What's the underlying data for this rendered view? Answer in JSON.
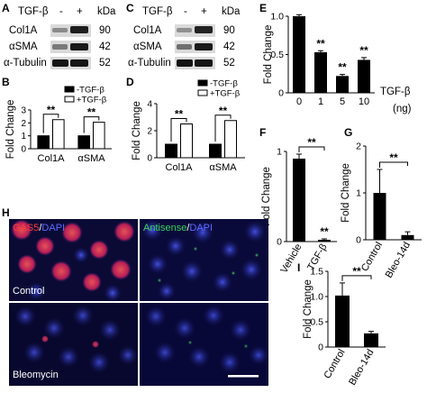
{
  "panel_letters": {
    "A": "A",
    "B": "B",
    "C": "C",
    "D": "D",
    "E": "E",
    "F": "F",
    "G": "G",
    "H": "H",
    "I": "I"
  },
  "blot_A": {
    "treatment_label": "TGF-β",
    "minus": "-",
    "plus": "+",
    "unit": "kDa",
    "rows": [
      {
        "name": "Col1A",
        "kda": "90"
      },
      {
        "name": "αSMA",
        "kda": "42"
      },
      {
        "name": "α-Tubulin",
        "kda": "52"
      }
    ]
  },
  "blot_C": {
    "treatment_label": "TGF-β",
    "minus": "-",
    "plus": "+",
    "unit": "kDa",
    "rows": [
      {
        "name": "Col1A",
        "kda": "90"
      },
      {
        "name": "αSMA",
        "kda": "42"
      },
      {
        "name": "α-Tubulin",
        "kda": "52"
      }
    ]
  },
  "microscopy": {
    "channel_left": {
      "part1": "GAS5",
      "sep": "/",
      "part2": "DAPI"
    },
    "channel_right": {
      "part1": "Antisense",
      "sep": "/",
      "part2": "DAPI"
    },
    "row_top": "Control",
    "row_bottom": "Bleomycin",
    "colors": {
      "gas5": "#ff3a3a",
      "antisense": "#39d35a",
      "dapi": "#3a4bff",
      "label_white": "#ffffff"
    }
  },
  "chart_data": [
    {
      "id": "B",
      "type": "bar",
      "categories": [
        "Col1A",
        "αSMA"
      ],
      "series": [
        {
          "name": "-TGF-β",
          "values": [
            1.0,
            1.0
          ],
          "fill": "#000000"
        },
        {
          "name": "+TGF-β",
          "values": [
            2.25,
            2.05
          ],
          "fill": "#ffffff"
        }
      ],
      "ylabel": "Fold Change",
      "ylim": [
        0,
        3
      ],
      "yticks": [
        "0",
        "1",
        "2",
        "3"
      ],
      "significance": [
        "**",
        "**"
      ],
      "legend": "top-right"
    },
    {
      "id": "D",
      "type": "bar",
      "categories": [
        "Col1A",
        "αSMA"
      ],
      "series": [
        {
          "name": "-TGF-β",
          "values": [
            1.0,
            1.0
          ],
          "fill": "#000000"
        },
        {
          "name": "+TGF-β",
          "values": [
            2.5,
            2.75
          ],
          "fill": "#ffffff"
        }
      ],
      "ylabel": "Fold Change",
      "ylim": [
        0,
        4
      ],
      "yticks": [
        "0",
        "2",
        "4"
      ],
      "significance": [
        "**",
        "**"
      ],
      "legend": "top-right"
    },
    {
      "id": "E",
      "type": "bar",
      "categories": [
        "0",
        "1",
        "5",
        "10"
      ],
      "values": [
        1.0,
        0.53,
        0.22,
        0.43
      ],
      "errors": [
        0.02,
        0.02,
        0.02,
        0.03
      ],
      "ylabel": "Fold Change",
      "xlabel_line1": "TGF-β",
      "xlabel_line2": "(ng)",
      "ylim": [
        0,
        1
      ],
      "yticks": [
        "0",
        "0.5",
        "1.0"
      ],
      "significance": [
        "",
        "**",
        "**",
        "**"
      ]
    },
    {
      "id": "F",
      "type": "bar",
      "categories": [
        "Vehicle",
        "TGF-β"
      ],
      "values": [
        0.92,
        0.02
      ],
      "errors": [
        0.05,
        0.01
      ],
      "ylabel": "Fold Change",
      "ylim": [
        0,
        1
      ],
      "yticks": [
        "0",
        "1"
      ],
      "significance_bracket": "**",
      "significance": [
        "",
        "**"
      ]
    },
    {
      "id": "G",
      "type": "bar",
      "categories": [
        "Control",
        "Bleo-14d"
      ],
      "values": [
        1.0,
        0.1
      ],
      "errors": [
        0.5,
        0.07
      ],
      "ylabel": "Fold Change",
      "ylim": [
        0,
        2
      ],
      "yticks": [
        "0",
        "1",
        "2"
      ],
      "significance_bracket": "**"
    },
    {
      "id": "I",
      "type": "bar",
      "categories": [
        "Control",
        "Bleo-14d"
      ],
      "values": [
        1.02,
        0.27
      ],
      "errors": [
        0.25,
        0.04
      ],
      "ylabel": "Fold Change",
      "ylim": [
        0,
        1.5
      ],
      "yticks": [
        "0",
        "0.5",
        "1.0",
        "1.5"
      ],
      "significance_bracket": "**"
    }
  ]
}
